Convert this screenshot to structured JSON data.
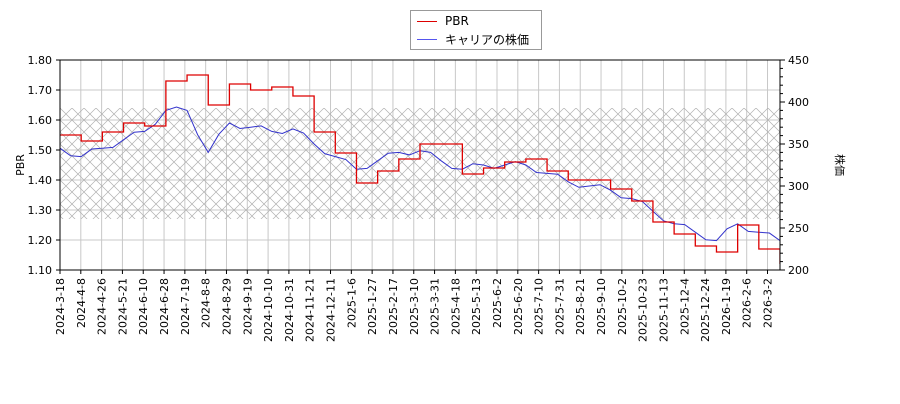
{
  "legend": {
    "items": [
      {
        "label": "PBR",
        "color": "#dd0000"
      },
      {
        "label": "キャリアの株価",
        "color": "#3333cc"
      }
    ]
  },
  "axes": {
    "left_label": "PBR",
    "right_label": "株価",
    "left_ticks": [
      "1.80",
      "1.70",
      "1.60",
      "1.50",
      "1.40",
      "1.30",
      "1.20",
      "1.10"
    ],
    "right_ticks": [
      "450",
      "400",
      "350",
      "300",
      "250",
      "200"
    ],
    "x_ticks": [
      "2024-3-18",
      "2024-4-8",
      "2024-4-26",
      "2024-5-21",
      "2024-6-10",
      "2024-6-28",
      "2024-7-19",
      "2024-8-8",
      "2024-8-29",
      "2024-9-19",
      "2024-10-10",
      "2024-10-31",
      "2024-11-21",
      "2024-12-11",
      "2025-1-6",
      "2025-1-27",
      "2025-2-17",
      "2025-3-10",
      "2025-3-31",
      "2025-4-18",
      "2025-5-13",
      "2025-6-2",
      "2025-6-20",
      "2025-7-10",
      "2025-7-31",
      "2025-8-21",
      "2025-9-10",
      "2025-10-2",
      "2025-10-23",
      "2025-11-13",
      "2025-12-4",
      "2025-12-24",
      "2026-1-19",
      "2026-2-6",
      "2026-3-2"
    ]
  },
  "chart_data": {
    "type": "line",
    "title": "",
    "xlabel": "",
    "ylabel": "PBR",
    "ylabel_right": "株価",
    "ylim": [
      1.1,
      1.8
    ],
    "ylim_right": [
      200,
      450
    ],
    "grid": true,
    "legend_position": "top-center",
    "hatched_band_pbr": [
      1.27,
      1.64
    ],
    "categories": [
      "2024-3-18",
      "2024-4-8",
      "2024-4-26",
      "2024-5-21",
      "2024-6-10",
      "2024-6-28",
      "2024-7-19",
      "2024-8-8",
      "2024-8-29",
      "2024-9-19",
      "2024-10-10",
      "2024-10-31",
      "2024-11-21",
      "2024-12-11",
      "2025-1-6",
      "2025-1-27",
      "2025-2-17",
      "2025-3-10",
      "2025-3-31",
      "2025-4-18",
      "2025-5-13",
      "2025-6-2",
      "2025-6-20",
      "2025-7-10",
      "2025-7-31",
      "2025-8-21",
      "2025-9-10",
      "2025-10-2",
      "2025-10-23",
      "2025-11-13",
      "2025-12-4",
      "2025-12-24",
      "2026-1-19",
      "2026-2-6",
      "2026-3-2"
    ],
    "series": [
      {
        "name": "PBR",
        "axis": "left",
        "color": "#dd0000",
        "values": [
          1.55,
          1.53,
          1.56,
          1.59,
          1.58,
          1.73,
          1.75,
          1.65,
          1.72,
          1.7,
          1.71,
          1.68,
          1.56,
          1.49,
          1.39,
          1.43,
          1.47,
          1.52,
          1.52,
          1.42,
          1.44,
          1.46,
          1.47,
          1.43,
          1.4,
          1.4,
          1.37,
          1.33,
          1.26,
          1.22,
          1.18,
          1.16,
          1.25,
          1.17,
          1.12
        ]
      },
      {
        "name": "キャリアの株価",
        "axis": "right",
        "color": "#3333cc",
        "values": [
          345,
          335,
          345,
          355,
          365,
          390,
          390,
          340,
          375,
          370,
          365,
          368,
          350,
          335,
          320,
          330,
          340,
          342,
          330,
          320,
          325,
          325,
          325,
          315,
          305,
          300,
          295,
          285,
          270,
          255,
          245,
          235,
          255,
          245,
          235
        ]
      }
    ]
  }
}
